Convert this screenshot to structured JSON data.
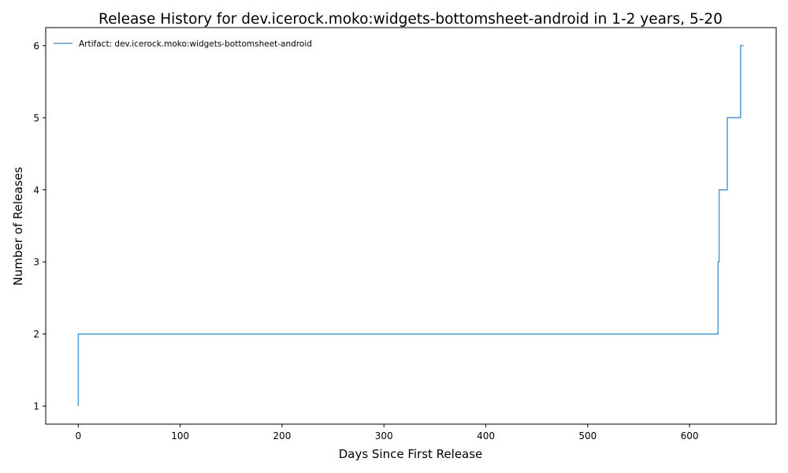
{
  "chart_data": {
    "type": "line",
    "title": "Release History for dev.icerock.moko:widgets-bottomsheet-android in 1-2 years, 5-20",
    "xlabel": "Days Since First Release",
    "ylabel": "Number of Releases",
    "xlim": [
      -32,
      685
    ],
    "ylim": [
      0.75,
      6.25
    ],
    "x_ticks": [
      0,
      100,
      200,
      300,
      400,
      500,
      600
    ],
    "y_ticks": [
      1,
      2,
      3,
      4,
      5,
      6
    ],
    "grid": false,
    "legend_position": "top-left",
    "step": "post",
    "series": [
      {
        "name": "Artifact: dev.icerock.moko:widgets-bottomsheet-android",
        "color": "#5a9fd4",
        "x": [
          0,
          0,
          628,
          629,
          637,
          650,
          653
        ],
        "y": [
          1,
          2,
          3,
          4,
          5,
          6,
          6
        ]
      }
    ]
  }
}
